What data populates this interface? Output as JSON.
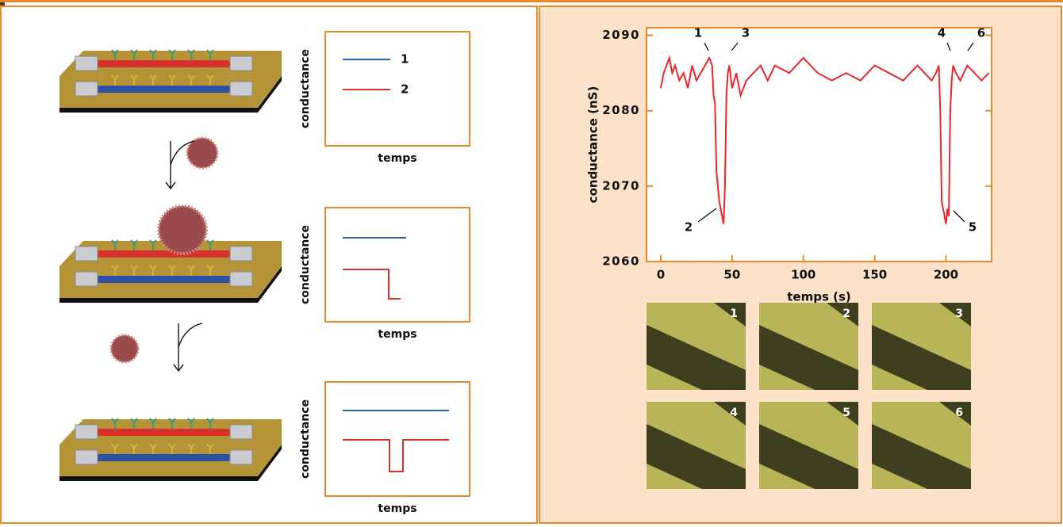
{
  "chart_data": {
    "type": "line",
    "x_label": "temps (s)",
    "y_label": "conductance (nS)",
    "x": [
      0,
      2,
      4,
      6,
      8,
      10,
      13,
      16,
      19,
      22,
      25,
      28,
      31,
      34,
      36,
      37,
      38,
      39,
      40,
      41,
      42,
      43,
      44,
      45,
      46,
      47,
      48,
      50,
      53,
      56,
      60,
      65,
      70,
      75,
      80,
      90,
      100,
      110,
      120,
      130,
      140,
      150,
      160,
      170,
      180,
      185,
      190,
      193,
      195,
      196,
      197,
      198,
      199,
      200,
      201,
      202,
      203,
      204,
      205,
      207,
      210,
      215,
      220,
      225,
      230
    ],
    "series": [
      {
        "color": "#e8262b",
        "values": [
          2083,
          2085,
          2086,
          2087,
          2085,
          2086,
          2084,
          2085,
          2083,
          2086,
          2084,
          2085,
          2086,
          2087,
          2086,
          2082,
          2081,
          2072,
          2070,
          2068,
          2067,
          2066,
          2065,
          2070,
          2082,
          2085,
          2086,
          2083,
          2085,
          2082,
          2084,
          2085,
          2086,
          2084,
          2086,
          2085,
          2087,
          2085,
          2084,
          2085,
          2084,
          2086,
          2085,
          2084,
          2086,
          2085,
          2084,
          2085,
          2086,
          2080,
          2068,
          2067,
          2066,
          2065,
          2067,
          2066,
          2080,
          2084,
          2086,
          2085,
          2084,
          2086,
          2085,
          2084,
          2085
        ]
      }
    ],
    "xlim": [
      -10,
      232
    ],
    "ylim": [
      2060,
      2091
    ],
    "xticks": [
      0,
      50,
      100,
      150,
      200
    ],
    "yticks": [
      2060,
      2070,
      2080,
      2090
    ],
    "annotations": [
      "1",
      "2",
      "3",
      "4",
      "5",
      "6"
    ]
  },
  "schematics": [
    {
      "y_label": "conductance",
      "x_label": "temps",
      "legend": [
        "1",
        "2"
      ]
    },
    {
      "y_label": "conductance",
      "x_label": "temps"
    },
    {
      "y_label": "conductance",
      "x_label": "temps"
    }
  ],
  "photos": [
    "1",
    "2",
    "3",
    "4",
    "5",
    "6"
  ]
}
